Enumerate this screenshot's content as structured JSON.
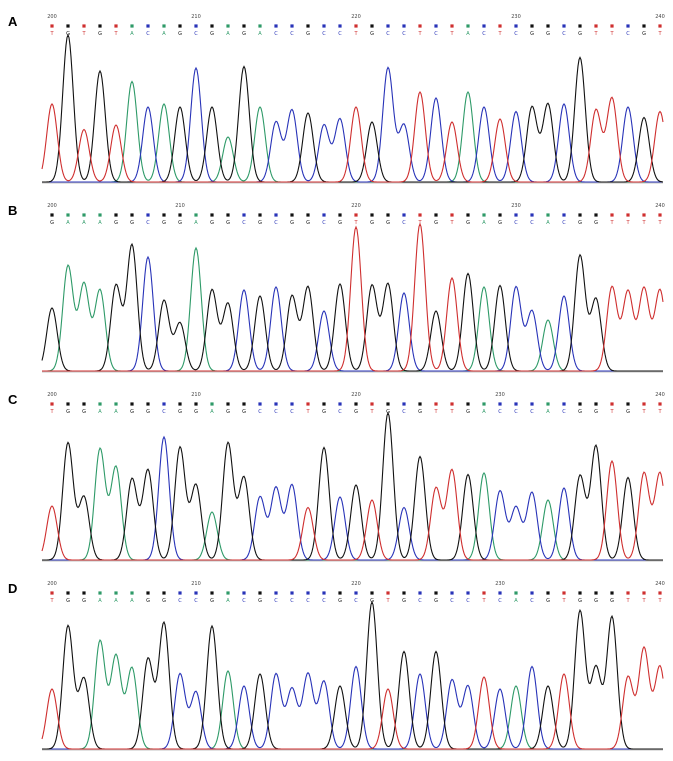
{
  "colors": {
    "A": "#2e9a68",
    "C": "#2833b8",
    "G": "#111111",
    "T": "#cf2f2f"
  },
  "chart_data": [
    {
      "type": "line",
      "panel_label": "A",
      "positions": [
        {
          "index": 1,
          "label": "200"
        },
        {
          "index": 10,
          "label": "210"
        },
        {
          "index": 20,
          "label": "220"
        },
        {
          "index": 30,
          "label": "230"
        },
        {
          "index": 39,
          "label": "240"
        }
      ],
      "bases": [
        "T",
        "G",
        "T",
        "G",
        "T",
        "A",
        "C",
        "A",
        "G",
        "C",
        "G",
        "A",
        "G",
        "A",
        "C",
        "C",
        "G",
        "C",
        "C",
        "T",
        "G",
        "C",
        "C",
        "T",
        "C",
        "T",
        "A",
        "C",
        "T",
        "C",
        "G",
        "G",
        "C",
        "G",
        "T",
        "T",
        "C",
        "G",
        "T"
      ],
      "peaks": [
        0.52,
        0.98,
        0.35,
        0.74,
        0.38,
        0.67,
        0.5,
        0.52,
        0.5,
        0.76,
        0.5,
        0.3,
        0.77,
        0.5,
        0.4,
        0.48,
        0.46,
        0.38,
        0.42,
        0.5,
        0.4,
        0.76,
        0.38,
        0.6,
        0.56,
        0.4,
        0.6,
        0.5,
        0.42,
        0.47,
        0.5,
        0.52,
        0.52,
        0.83,
        0.48,
        0.56,
        0.5,
        0.43,
        0.47
      ]
    },
    {
      "type": "line",
      "panel_label": "B",
      "positions": [
        {
          "index": 1,
          "label": "200"
        },
        {
          "index": 9,
          "label": "210"
        },
        {
          "index": 20,
          "label": "220"
        },
        {
          "index": 30,
          "label": "230"
        },
        {
          "index": 39,
          "label": "240"
        }
      ],
      "bases": [
        "G",
        "A",
        "A",
        "A",
        "G",
        "G",
        "C",
        "G",
        "G",
        "A",
        "G",
        "G",
        "C",
        "G",
        "C",
        "G",
        "G",
        "C",
        "G",
        "T",
        "G",
        "G",
        "C",
        "T",
        "G",
        "T",
        "G",
        "A",
        "G",
        "C",
        "C",
        "A",
        "C",
        "G",
        "G",
        "T",
        "T",
        "T",
        "T"
      ],
      "peaks": [
        0.42,
        0.7,
        0.58,
        0.54,
        0.57,
        0.84,
        0.76,
        0.47,
        0.32,
        0.82,
        0.54,
        0.45,
        0.54,
        0.5,
        0.56,
        0.5,
        0.56,
        0.4,
        0.58,
        0.96,
        0.57,
        0.58,
        0.52,
        0.98,
        0.4,
        0.62,
        0.65,
        0.56,
        0.57,
        0.56,
        0.4,
        0.34,
        0.5,
        0.77,
        0.48,
        0.56,
        0.53,
        0.55,
        0.54
      ]
    },
    {
      "type": "line",
      "panel_label": "C",
      "positions": [
        {
          "index": 1,
          "label": "200"
        },
        {
          "index": 10,
          "label": "210"
        },
        {
          "index": 20,
          "label": "220"
        },
        {
          "index": 29,
          "label": "230"
        },
        {
          "index": 39,
          "label": "240"
        }
      ],
      "bases": [
        "T",
        "G",
        "G",
        "A",
        "A",
        "G",
        "G",
        "C",
        "G",
        "G",
        "A",
        "G",
        "G",
        "C",
        "C",
        "C",
        "T",
        "G",
        "C",
        "G",
        "T",
        "G",
        "C",
        "G",
        "T",
        "T",
        "G",
        "A",
        "C",
        "C",
        "C",
        "A",
        "C",
        "G",
        "G",
        "T",
        "G",
        "T",
        "T"
      ],
      "peaks": [
        0.36,
        0.78,
        0.42,
        0.74,
        0.62,
        0.54,
        0.6,
        0.82,
        0.75,
        0.5,
        0.32,
        0.78,
        0.55,
        0.42,
        0.48,
        0.5,
        0.35,
        0.75,
        0.42,
        0.5,
        0.4,
        0.98,
        0.35,
        0.69,
        0.48,
        0.6,
        0.57,
        0.58,
        0.46,
        0.35,
        0.45,
        0.4,
        0.48,
        0.56,
        0.76,
        0.66,
        0.55,
        0.58,
        0.58
      ]
    },
    {
      "type": "line",
      "panel_label": "D",
      "positions": [
        {
          "index": 1,
          "label": "200"
        },
        {
          "index": 10,
          "label": "210"
        },
        {
          "index": 20,
          "label": "220"
        },
        {
          "index": 29,
          "label": "230"
        },
        {
          "index": 39,
          "label": "240"
        }
      ],
      "bases": [
        "T",
        "G",
        "G",
        "A",
        "A",
        "A",
        "G",
        "G",
        "C",
        "C",
        "G",
        "A",
        "C",
        "G",
        "C",
        "C",
        "C",
        "C",
        "G",
        "C",
        "G",
        "T",
        "G",
        "C",
        "G",
        "C",
        "C",
        "T",
        "C",
        "A",
        "C",
        "G",
        "T",
        "G",
        "G",
        "G",
        "T",
        "T",
        "T"
      ],
      "peaks": [
        0.4,
        0.82,
        0.47,
        0.72,
        0.62,
        0.54,
        0.6,
        0.84,
        0.5,
        0.38,
        0.82,
        0.52,
        0.42,
        0.5,
        0.5,
        0.4,
        0.5,
        0.45,
        0.42,
        0.55,
        0.98,
        0.4,
        0.65,
        0.5,
        0.65,
        0.46,
        0.42,
        0.48,
        0.4,
        0.42,
        0.55,
        0.42,
        0.5,
        0.92,
        0.54,
        0.88,
        0.48,
        0.67,
        0.55
      ]
    }
  ]
}
